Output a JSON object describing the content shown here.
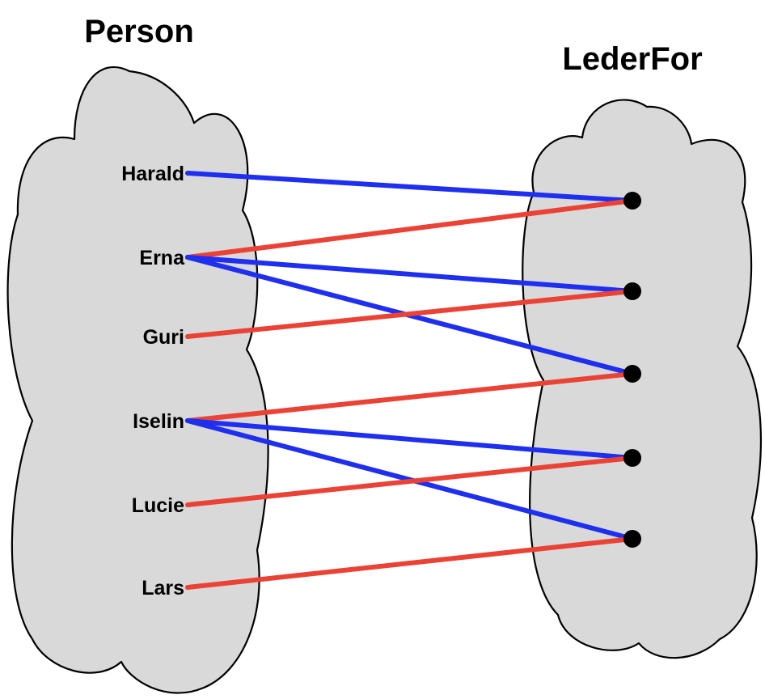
{
  "diagram": {
    "left_set": {
      "title": "Person",
      "elements": [
        "Harald",
        "Erna",
        "Guri",
        "Iselin",
        "Lucie",
        "Lars"
      ]
    },
    "right_set": {
      "title": "LederFor",
      "element_count": 5
    },
    "edges": [
      {
        "from": "Harald",
        "to": 1,
        "color": "blue"
      },
      {
        "from": "Erna",
        "to": 1,
        "color": "red"
      },
      {
        "from": "Erna",
        "to": 2,
        "color": "blue"
      },
      {
        "from": "Erna",
        "to": 3,
        "color": "blue"
      },
      {
        "from": "Guri",
        "to": 2,
        "color": "red"
      },
      {
        "from": "Iselin",
        "to": 3,
        "color": "red"
      },
      {
        "from": "Iselin",
        "to": 4,
        "color": "blue"
      },
      {
        "from": "Iselin",
        "to": 5,
        "color": "blue"
      },
      {
        "from": "Lucie",
        "to": 4,
        "color": "red"
      },
      {
        "from": "Lars",
        "to": 5,
        "color": "red"
      }
    ],
    "colors": {
      "blue": "#1f2ff0",
      "red": "#ea4335",
      "cloud_fill": "#d9d9d9",
      "cloud_stroke": "#000000",
      "dot": "#000000"
    }
  }
}
